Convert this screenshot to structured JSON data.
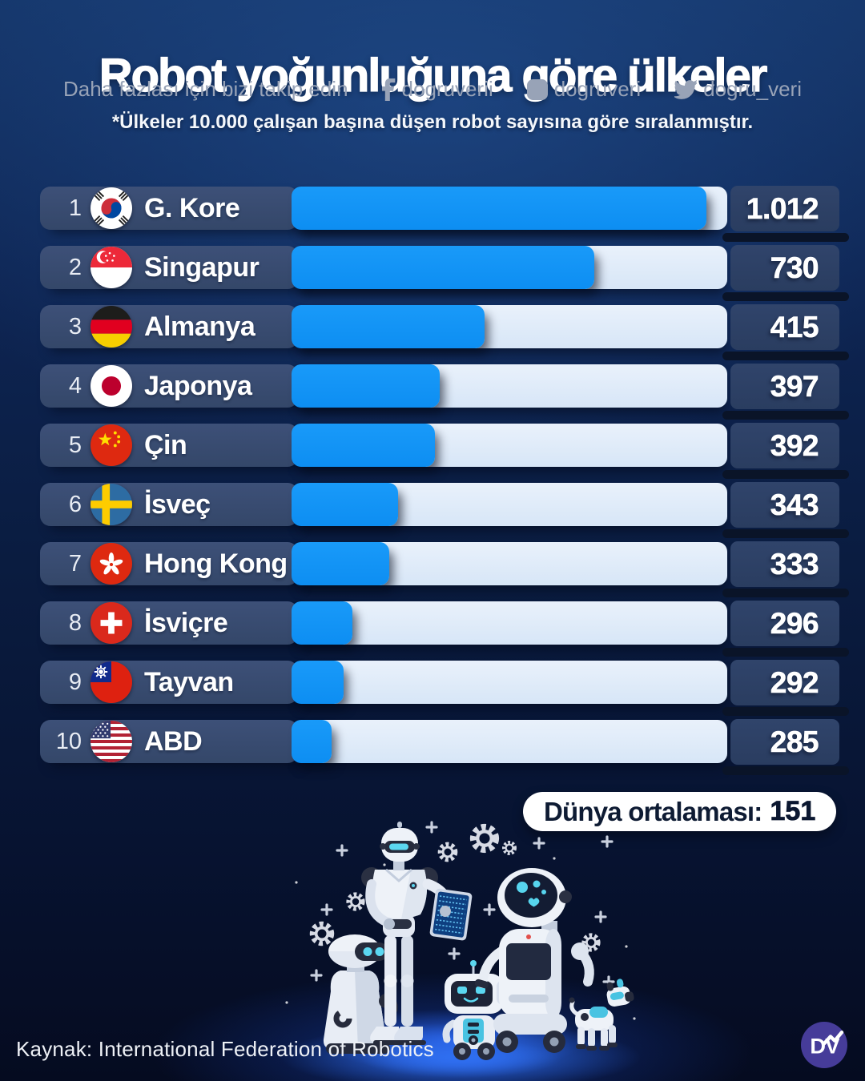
{
  "header": {
    "title": "Robot yoğunluğuna göre ülkeler",
    "follow_text": "Daha fazlası için bizi takip edin",
    "social": [
      {
        "network": "facebook",
        "icon": "facebook-icon",
        "handle": "dogruverii"
      },
      {
        "network": "instagram",
        "icon": "instagram-icon",
        "handle": "dogruveri"
      },
      {
        "network": "twitter",
        "icon": "twitter-icon",
        "handle": "dogru_veri"
      }
    ],
    "note": "*Ülkeler 10.000 çalışan başına düşen robot sayısına göre sıralanmıştır."
  },
  "chart_data": {
    "type": "bar",
    "orientation": "horizontal",
    "title": "Robot yoğunluğuna göre ülkeler",
    "note": "*Ülkeler 10.000 çalışan başına düşen robot sayısına göre sıralanmıştır.",
    "unit": "robot / 10.000 çalışan",
    "ranks": [
      1,
      2,
      3,
      4,
      5,
      6,
      7,
      8,
      9,
      10
    ],
    "categories": [
      "G. Kore",
      "Singapur",
      "Almanya",
      "Japonya",
      "Çin",
      "İsveç",
      "Hong Kong",
      "İsviçre",
      "Tayvan",
      "ABD"
    ],
    "values": [
      1012,
      730,
      415,
      397,
      392,
      343,
      333,
      296,
      292,
      285
    ],
    "value_labels": [
      "1.012",
      "730",
      "415",
      "397",
      "392",
      "343",
      "333",
      "296",
      "292",
      "285"
    ],
    "flags": [
      "kr",
      "sg",
      "de",
      "jp",
      "cn",
      "se",
      "hk",
      "ch",
      "tw",
      "us"
    ],
    "bar_pct": [
      96,
      70,
      44.7,
      34.2,
      33.1,
      24.6,
      22.6,
      14,
      12.1,
      9.2
    ],
    "xlim": [
      0,
      1012
    ],
    "grid": false,
    "world_average": 151,
    "world_average_label": "Dünya ortalaması:",
    "world_average_value": "151",
    "colors": {
      "bar_fill": "#0d8ef2",
      "bar_track": "#dde9f8",
      "label_box": "#394d73",
      "value_box": "#2d4166",
      "background_top": "#143467",
      "background_bottom": "#050b20",
      "pill_bg": "#ffffff",
      "pill_text": "#0e1b33"
    }
  },
  "footer": {
    "source": "Kaynak: International Federation of Robotics",
    "logo_text": "DV",
    "logo_color": "#463c99"
  }
}
